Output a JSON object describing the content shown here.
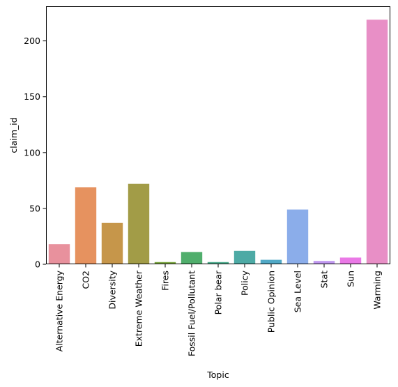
{
  "chart_data": {
    "type": "bar",
    "title": "",
    "xlabel": "Topic",
    "ylabel": "claim_id",
    "ylim": [
      0,
      231
    ],
    "yticks": [
      0,
      50,
      100,
      150,
      200
    ],
    "grid": false,
    "categories": [
      "Alternative Energy",
      "CO2",
      "Diversity",
      "Extreme Weather",
      "Fires",
      "Fossil Fuel/Pollutant",
      "Polar bear",
      "Policy",
      "Public Opinion",
      "Sea Level",
      "Stat",
      "Sun",
      "Warming"
    ],
    "values": [
      18,
      69,
      37,
      72,
      2,
      11,
      2,
      12,
      4,
      49,
      3,
      6,
      219
    ],
    "colors": [
      "#e8919d",
      "#e6925f",
      "#c6964a",
      "#a29c47",
      "#7ca743",
      "#50ae6c",
      "#50ad8f",
      "#4daaa5",
      "#51a9c6",
      "#8badea",
      "#c098f0",
      "#ea79e6",
      "#e88fc6"
    ]
  }
}
